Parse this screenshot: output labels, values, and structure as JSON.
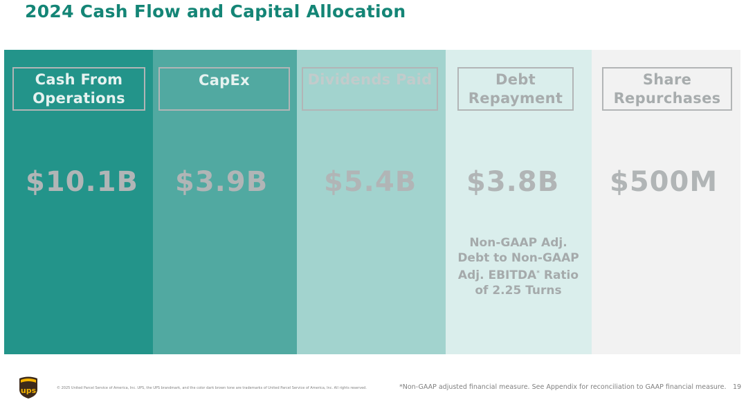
{
  "title": "2024 Cash Flow and Capital Allocation",
  "columns": [
    {
      "label": "Cash From Operations",
      "value": "$10.1B",
      "bg": "#23948a",
      "label_color": "#e6f2f0"
    },
    {
      "label": "CapEx",
      "value": "$3.9B",
      "bg": "#51a9a1",
      "label_color": "#e6f2f0"
    },
    {
      "label": "Dividends Paid",
      "value": "$5.4B",
      "bg": "#a2d3ce",
      "label_color": "#c2cbcb"
    },
    {
      "label": "Debt Repayment",
      "value": "$3.8B",
      "bg": "#daeeec",
      "label_color": "#a7acad",
      "note": "Non-GAAP Adj. Debt to Non-GAAP Adj. EBITDA* Ratio of 2.25 Turns"
    },
    {
      "label": "Share Repurchases",
      "value": "$500M",
      "bg": "#f2f2f2",
      "label_color": "#a7acad"
    }
  ],
  "footer": {
    "logo_text": "ups",
    "copyright": "© 2025 United Parcel Service of America, Inc. UPS, the UPS brandmark, and the color dark brown tone are trademarks of United Parcel Service of America, Inc. All rights reserved.",
    "footnote": "*Non-GAAP adjusted financial measure. See Appendix for reconciliation to GAAP financial measure.",
    "page_number": "19"
  },
  "colors": {
    "title": "#148576",
    "box_border": "#b2b5b6",
    "value_text": "#b1b5b6"
  }
}
